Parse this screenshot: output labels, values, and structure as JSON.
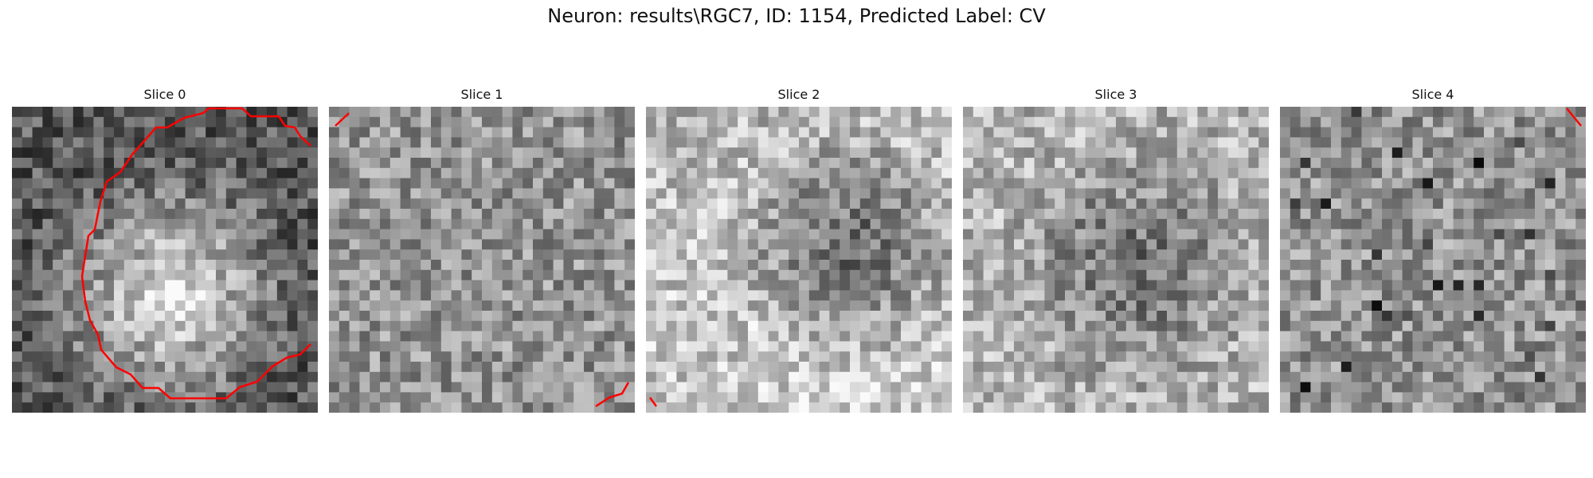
{
  "figure": {
    "suptitle": "Neuron: results\\RGC7, ID: 1154, Predicted Label: CV"
  },
  "panels": [
    {
      "title": "Slice 0",
      "seed": 11,
      "pattern": "bright-blob",
      "contour_color": "#ff0000"
    },
    {
      "title": "Slice 1",
      "seed": 23,
      "pattern": "noise",
      "contour_color": "#ff0000"
    },
    {
      "title": "Slice 2",
      "seed": 37,
      "pattern": "dark-top-bright-bottom",
      "contour_color": "#ff0000"
    },
    {
      "title": "Slice 3",
      "seed": 41,
      "pattern": "dark-center",
      "contour_color": "#ff0000"
    },
    {
      "title": "Slice 4",
      "seed": 59,
      "pattern": "noise-dark-spots",
      "contour_color": "#ff0000"
    }
  ]
}
